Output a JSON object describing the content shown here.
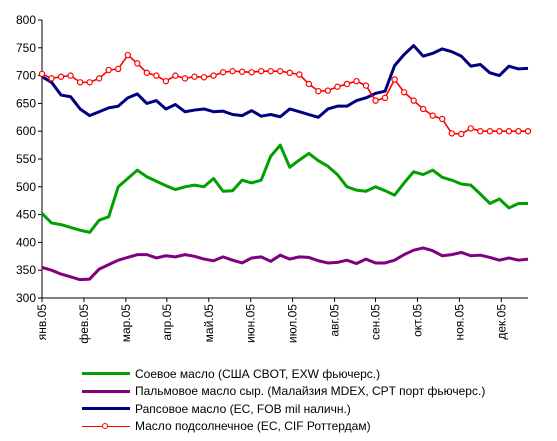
{
  "chart_data": {
    "type": "line",
    "title": "",
    "xlabel": "",
    "ylabel": "",
    "ylim": [
      300,
      800
    ],
    "yticks": [
      300,
      350,
      400,
      450,
      500,
      550,
      600,
      650,
      700,
      750,
      800
    ],
    "xlim": [
      0,
      51
    ],
    "xtick_labels": [
      "янв.05",
      "фев.05",
      "мар.05",
      "апр.05",
      "май.05",
      "июн.05",
      "июл.05",
      "авг.05",
      "сен.05",
      "окт.05",
      "ноя.05",
      "дек.05"
    ],
    "xtick_positions": [
      0,
      4.4,
      8.8,
      13.1,
      17.5,
      21.9,
      26.3,
      30.7,
      35.0,
      39.4,
      43.8,
      48.2
    ],
    "grid": false,
    "legend_position": "bottom",
    "series": [
      {
        "name": "Соевое масло (США CBOT, EXW фьючерс.)",
        "color": "#00a000",
        "marker": false,
        "values": [
          452,
          435,
          432,
          427,
          422,
          418,
          440,
          446,
          500,
          515,
          530,
          518,
          510,
          502,
          495,
          500,
          503,
          500,
          515,
          492,
          493,
          512,
          507,
          512,
          555,
          575,
          535,
          548,
          560,
          547,
          537,
          522,
          500,
          494,
          492,
          500,
          493,
          485,
          507,
          527,
          522,
          530,
          517,
          512,
          505,
          503,
          487,
          470,
          478,
          462,
          470,
          470
        ]
      },
      {
        "name": "Пальмовое масло сыр. (Малайзия MDEX, CPT порт фьючерс.)",
        "color": "#800080",
        "marker": false,
        "values": [
          355,
          350,
          343,
          338,
          333,
          334,
          352,
          360,
          368,
          373,
          378,
          378,
          372,
          376,
          374,
          378,
          375,
          370,
          367,
          374,
          368,
          363,
          372,
          374,
          366,
          377,
          370,
          374,
          373,
          367,
          363,
          364,
          368,
          362,
          370,
          363,
          363,
          368,
          378,
          386,
          390,
          385,
          376,
          378,
          382,
          376,
          377,
          373,
          368,
          372,
          368,
          370
        ]
      },
      {
        "name": "Рапсовое масло (ЕС, FOB mil наличн.)",
        "color": "#000080",
        "marker": false,
        "values": [
          698,
          688,
          665,
          662,
          640,
          628,
          635,
          642,
          645,
          660,
          667,
          650,
          655,
          640,
          648,
          635,
          638,
          640,
          635,
          636,
          630,
          628,
          637,
          627,
          630,
          626,
          640,
          635,
          630,
          625,
          640,
          645,
          645,
          655,
          660,
          668,
          672,
          718,
          738,
          754,
          735,
          740,
          748,
          743,
          735,
          717,
          720,
          705,
          700,
          717,
          712,
          713
        ]
      },
      {
        "name": "Масло подсолнечное (ЕС, CIF Роттердам)",
        "color": "#ff0000",
        "marker": true,
        "values": [
          703,
          695,
          698,
          700,
          688,
          688,
          695,
          710,
          712,
          737,
          722,
          705,
          700,
          690,
          700,
          695,
          698,
          697,
          700,
          706,
          708,
          707,
          706,
          708,
          708,
          708,
          705,
          702,
          685,
          672,
          673,
          680,
          685,
          690,
          682,
          655,
          660,
          693,
          670,
          655,
          640,
          628,
          622,
          596,
          595,
          605,
          600,
          600,
          600,
          600,
          600,
          600
        ]
      }
    ]
  }
}
